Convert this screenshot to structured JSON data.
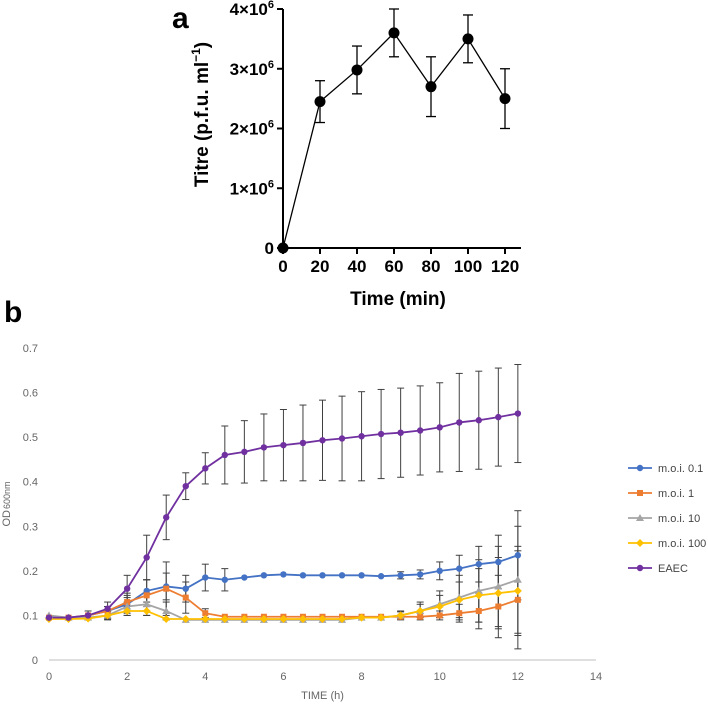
{
  "chart_data": [
    {
      "panel": "a",
      "type": "line",
      "xlabel": "Time (min)",
      "ylabel_prefix": "Titre (p.f.u. ml",
      "ylabel_sup": "−1",
      "ylabel_suffix": ")",
      "x_ticks": [
        "0",
        "20",
        "40",
        "60",
        "80",
        "100",
        "120"
      ],
      "y_tick_labels": [
        {
          "base": "0",
          "exp": ""
        },
        {
          "base": "1×10",
          "exp": "6"
        },
        {
          "base": "2×10",
          "exp": "6"
        },
        {
          "base": "3×10",
          "exp": "6"
        },
        {
          "base": "4×10",
          "exp": "6"
        }
      ],
      "xlim": [
        0,
        120
      ],
      "ylim": [
        0,
        4000000
      ],
      "x": [
        0,
        20,
        40,
        60,
        80,
        100,
        120
      ],
      "y": [
        0,
        2450000,
        2980000,
        3600000,
        2700000,
        3500000,
        2500000
      ],
      "err": [
        0,
        350000,
        400000,
        400000,
        500000,
        400000,
        500000
      ]
    },
    {
      "panel": "b",
      "type": "line",
      "xlabel": "TIME (h)",
      "ylabel": "OD",
      "ylabel_sub": "600nm",
      "xlim": [
        0,
        14
      ],
      "ylim": [
        0,
        0.7
      ],
      "x_ticks": [
        "0",
        "2",
        "4",
        "6",
        "8",
        "10",
        "12",
        "14"
      ],
      "y_ticks": [
        "0",
        "0.1",
        "0.2",
        "0.3",
        "0.4",
        "0.5",
        "0.6",
        "0.7"
      ],
      "x": [
        0,
        0.5,
        1,
        1.5,
        2,
        2.5,
        3,
        3.5,
        4,
        4.5,
        5,
        5.5,
        6,
        6.5,
        7,
        7.5,
        8,
        8.5,
        9,
        9.5,
        10,
        10.5,
        11,
        11.5,
        12
      ],
      "series": [
        {
          "name": "m.o.i. 0.1",
          "color": "#4472C4",
          "marker": "circle",
          "values": [
            0.095,
            0.095,
            0.1,
            0.11,
            0.125,
            0.155,
            0.165,
            0.16,
            0.185,
            0.18,
            0.185,
            0.19,
            0.192,
            0.19,
            0.19,
            0.19,
            0.19,
            0.188,
            0.19,
            0.192,
            0.2,
            0.205,
            0.215,
            0.22,
            0.235
          ],
          "err": [
            0.005,
            0.005,
            0.005,
            0.01,
            0.02,
            0.025,
            0.03,
            0.03,
            0.03,
            0.025,
            0.005,
            0.005,
            0.005,
            0.005,
            0.005,
            0.005,
            0.005,
            0.005,
            0.008,
            0.01,
            0.02,
            0.03,
            0.04,
            0.06,
            0.1
          ]
        },
        {
          "name": "m.o.i. 1",
          "color": "#ED7D31",
          "marker": "square",
          "values": [
            0.095,
            0.095,
            0.1,
            0.11,
            0.13,
            0.145,
            0.16,
            0.14,
            0.105,
            0.097,
            0.097,
            0.097,
            0.097,
            0.097,
            0.097,
            0.097,
            0.097,
            0.097,
            0.097,
            0.097,
            0.1,
            0.105,
            0.11,
            0.12,
            0.135
          ],
          "err": [
            0.005,
            0.005,
            0.005,
            0.01,
            0.02,
            0.035,
            0.06,
            0.035,
            0.01,
            0.005,
            0.005,
            0.005,
            0.005,
            0.005,
            0.005,
            0.005,
            0.005,
            0.005,
            0.005,
            0.005,
            0.01,
            0.02,
            0.04,
            0.07,
            0.11
          ]
        },
        {
          "name": "m.o.i. 10",
          "color": "#A5A5A5",
          "marker": "triangle",
          "values": [
            0.1,
            0.095,
            0.095,
            0.1,
            0.12,
            0.125,
            0.11,
            0.09,
            0.09,
            0.09,
            0.09,
            0.09,
            0.09,
            0.09,
            0.09,
            0.09,
            0.095,
            0.095,
            0.1,
            0.11,
            0.125,
            0.14,
            0.155,
            0.165,
            0.18
          ],
          "err": [
            0.005,
            0.005,
            0.005,
            0.01,
            0.02,
            0.025,
            0.02,
            0.005,
            0.005,
            0.005,
            0.005,
            0.005,
            0.005,
            0.005,
            0.005,
            0.005,
            0.005,
            0.005,
            0.01,
            0.02,
            0.03,
            0.05,
            0.07,
            0.09,
            0.12
          ]
        },
        {
          "name": "m.o.i. 100",
          "color": "#FFC000",
          "marker": "diamond",
          "values": [
            0.092,
            0.092,
            0.093,
            0.1,
            0.11,
            0.11,
            0.092,
            0.092,
            0.092,
            0.092,
            0.092,
            0.092,
            0.092,
            0.092,
            0.092,
            0.092,
            0.095,
            0.095,
            0.1,
            0.11,
            0.12,
            0.135,
            0.145,
            0.15,
            0.155
          ],
          "err": [
            0.005,
            0.005,
            0.005,
            0.008,
            0.01,
            0.01,
            0.005,
            0.005,
            0.005,
            0.005,
            0.005,
            0.005,
            0.005,
            0.005,
            0.005,
            0.005,
            0.005,
            0.005,
            0.008,
            0.015,
            0.025,
            0.04,
            0.06,
            0.08,
            0.1
          ]
        },
        {
          "name": "EAEC",
          "color": "#7030A0",
          "marker": "circle",
          "values": [
            0.095,
            0.095,
            0.1,
            0.115,
            0.16,
            0.23,
            0.32,
            0.39,
            0.43,
            0.46,
            0.467,
            0.477,
            0.482,
            0.487,
            0.493,
            0.497,
            0.502,
            0.507,
            0.51,
            0.515,
            0.522,
            0.533,
            0.538,
            0.545,
            0.553
          ],
          "err": [
            0.005,
            0.005,
            0.01,
            0.015,
            0.03,
            0.05,
            0.05,
            0.03,
            0.035,
            0.065,
            0.07,
            0.075,
            0.08,
            0.085,
            0.09,
            0.095,
            0.1,
            0.1,
            0.1,
            0.1,
            0.1,
            0.11,
            0.11,
            0.11,
            0.11
          ]
        }
      ]
    }
  ]
}
